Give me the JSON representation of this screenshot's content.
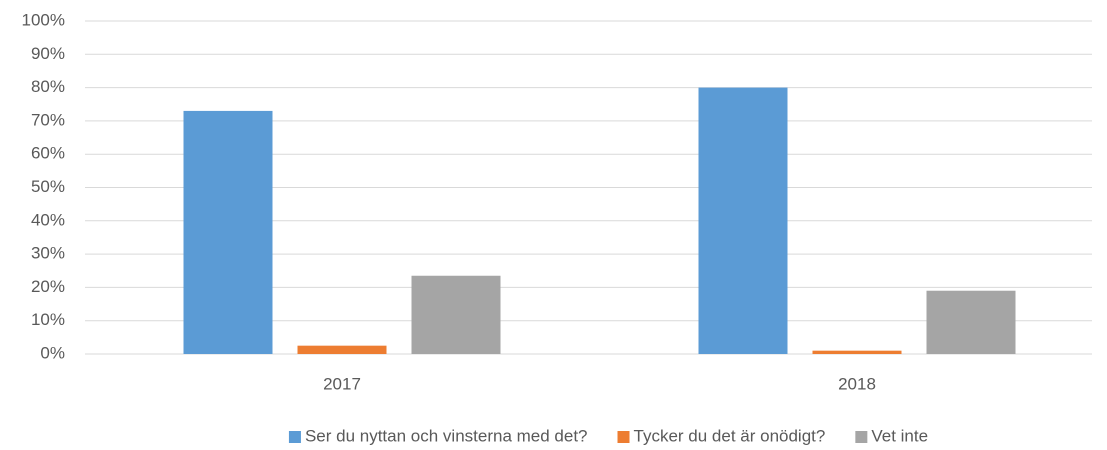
{
  "chart_data": {
    "type": "bar",
    "categories": [
      "2017",
      "2018"
    ],
    "series": [
      {
        "name": "Ser du nyttan och vinsterna med det?",
        "color": "#5b9bd5",
        "values": [
          73,
          80
        ]
      },
      {
        "name": "Tycker du det är onödigt?",
        "color": "#ed7d31",
        "values": [
          2.5,
          1
        ]
      },
      {
        "name": "Vet inte",
        "color": "#a5a5a5",
        "values": [
          23.5,
          19
        ]
      }
    ],
    "ylim": [
      0,
      100
    ],
    "yticks": [
      {
        "value": 0,
        "label": "0%"
      },
      {
        "value": 10,
        "label": "10%"
      },
      {
        "value": 20,
        "label": "20%"
      },
      {
        "value": 30,
        "label": "30%"
      },
      {
        "value": 40,
        "label": "40%"
      },
      {
        "value": 50,
        "label": "50%"
      },
      {
        "value": 60,
        "label": "60%"
      },
      {
        "value": 70,
        "label": "70%"
      },
      {
        "value": 80,
        "label": "80%"
      },
      {
        "value": 90,
        "label": "90%"
      },
      {
        "value": 100,
        "label": "100%"
      }
    ],
    "grid": true,
    "legend": "bottom"
  }
}
